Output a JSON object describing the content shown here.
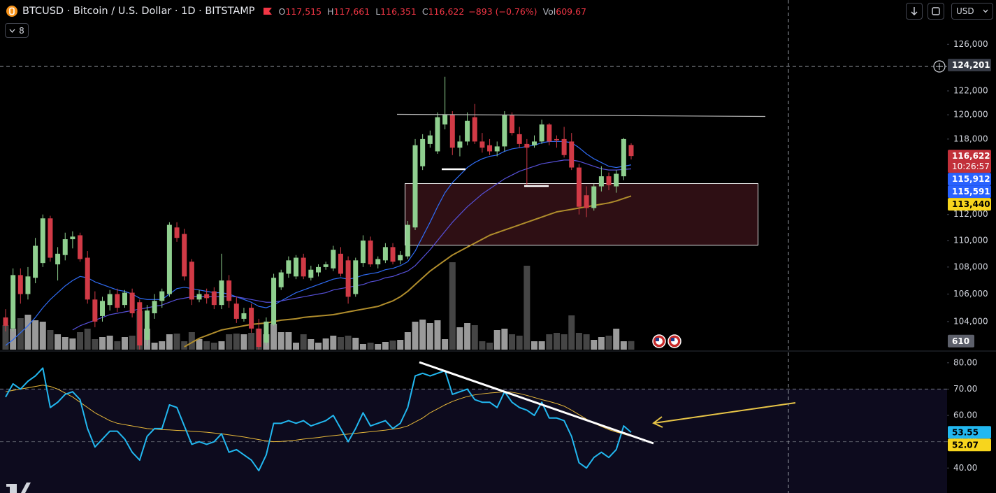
{
  "header": {
    "symbol": "BTCUSD · Bitcoin / U.S. Dollar · 1D · BITSTAMP",
    "ohlc": [
      {
        "label": "O",
        "value": "117,515"
      },
      {
        "label": "H",
        "value": "117,661"
      },
      {
        "label": "L",
        "value": "116,351"
      },
      {
        "label": "C",
        "value": "116,622"
      }
    ],
    "change": "−893 (−0.76%)",
    "vol_label": "Vol",
    "vol_value": "609.67",
    "indicator_count": "8",
    "currency": "USD"
  },
  "chart_data": [
    {
      "type": "candlestick",
      "log_scale": true,
      "grid": false,
      "ylim": [
        102000,
        129920
      ],
      "yticks": [
        {
          "value": 126000,
          "label": "126,000"
        },
        {
          "value": 122000,
          "label": "122,000"
        },
        {
          "value": 120000,
          "label": "120,000"
        },
        {
          "value": 118000,
          "label": "118,000"
        },
        {
          "value": 112000,
          "label": "112,000"
        },
        {
          "value": 110000,
          "label": "110,000"
        },
        {
          "value": 108000,
          "label": "108,000"
        },
        {
          "value": 106000,
          "label": "106,000"
        },
        {
          "value": 104000,
          "label": "104,000"
        }
      ],
      "up_color": "#8fcf8f",
      "down_color": "#d13a46",
      "open": [
        104300,
        103500,
        107400,
        106000,
        107200,
        108300,
        111700,
        108200,
        108900,
        110100,
        110400,
        108700,
        105600,
        104400,
        105200,
        106000,
        105200,
        106100,
        105400,
        102700,
        104600,
        105500,
        106000,
        111000,
        110500,
        108400,
        105600,
        106000,
        106200,
        105200,
        107000,
        105300,
        104200,
        105000,
        103500,
        102500,
        103800,
        106500,
        107500,
        107300,
        108700,
        107200,
        107600,
        108000,
        107900,
        109000,
        108500,
        106000,
        108300,
        110000,
        108200,
        108500,
        109500,
        108500,
        108800,
        111000,
        115800,
        117600,
        117000,
        119200,
        120000,
        117300,
        117800,
        119800,
        117800,
        117500,
        117000,
        117400,
        120000,
        118400,
        117600,
        117500,
        117800,
        119200,
        118000,
        118000,
        117800,
        115700,
        113500,
        112500,
        114200,
        115000,
        114200,
        115000,
        117515
      ],
      "high": [
        104900,
        107900,
        107900,
        108000,
        110200,
        112000,
        111900,
        109500,
        110600,
        110700,
        110600,
        109200,
        106200,
        105800,
        106300,
        106400,
        106300,
        106400,
        105600,
        105200,
        106000,
        106400,
        111400,
        111400,
        110900,
        108600,
        106300,
        106400,
        106500,
        109000,
        107400,
        105800,
        105000,
        105300,
        104200,
        104300,
        107500,
        107800,
        108800,
        108900,
        109000,
        108100,
        108200,
        108400,
        109600,
        109500,
        108800,
        108700,
        110400,
        110300,
        108800,
        109800,
        109800,
        109200,
        111500,
        118000,
        118400,
        118700,
        120200,
        123200,
        120300,
        118300,
        120200,
        120900,
        118500,
        118000,
        117800,
        120300,
        120200,
        119000,
        118000,
        118300,
        119600,
        119300,
        118300,
        119000,
        118500,
        116000,
        114200,
        114400,
        115800,
        115300,
        115500,
        118100,
        117661
      ],
      "low": [
        103300,
        103300,
        105300,
        105600,
        106800,
        108000,
        108400,
        107000,
        108500,
        109400,
        108400,
        105300,
        103600,
        104000,
        104800,
        104700,
        105000,
        104300,
        102000,
        102300,
        104200,
        105000,
        105800,
        109900,
        107000,
        105200,
        105400,
        105300,
        104900,
        104900,
        105000,
        103900,
        104000,
        103200,
        102000,
        102300,
        103700,
        106300,
        107200,
        107100,
        107100,
        107000,
        107300,
        107800,
        107700,
        107300,
        105300,
        105800,
        108000,
        108000,
        107900,
        108300,
        108200,
        108200,
        108600,
        110800,
        115500,
        117300,
        116800,
        118800,
        116700,
        116600,
        117500,
        117600,
        116900,
        116700,
        116600,
        117000,
        118300,
        117300,
        114300,
        117300,
        117600,
        117500,
        117300,
        116500,
        115500,
        112000,
        111800,
        112300,
        113800,
        113900,
        113700,
        114700,
        116351
      ],
      "close": [
        103700,
        107400,
        106000,
        107300,
        109600,
        111700,
        108700,
        109000,
        110100,
        110300,
        108600,
        105600,
        104000,
        105500,
        106000,
        105000,
        106100,
        104600,
        102300,
        104800,
        105500,
        106200,
        111200,
        110200,
        107300,
        105600,
        106000,
        105700,
        105200,
        107000,
        105500,
        104200,
        104600,
        103500,
        102200,
        104000,
        107200,
        107600,
        108500,
        108700,
        107300,
        107800,
        108000,
        108200,
        109300,
        107500,
        105800,
        108500,
        110000,
        108200,
        108600,
        109500,
        108400,
        108900,
        111200,
        117500,
        118000,
        118300,
        119800,
        120000,
        117300,
        117800,
        119500,
        117800,
        117300,
        117000,
        117400,
        120000,
        118500,
        117600,
        117300,
        117800,
        119200,
        117800,
        117900,
        116700,
        115700,
        112600,
        112500,
        114200,
        115000,
        114300,
        115200,
        118000,
        116622
      ],
      "series": [
        {
          "color": "#2f6cf5",
          "values": [
            102300,
            102700,
            103200,
            103700,
            104300,
            105000,
            105600,
            106100,
            106600,
            107000,
            107300,
            107200,
            106900,
            106700,
            106500,
            106300,
            106200,
            106000,
            105700,
            105600,
            105600,
            105600,
            106000,
            106400,
            106500,
            106400,
            106300,
            106200,
            106100,
            106100,
            106000,
            105800,
            105600,
            105400,
            105100,
            105000,
            105200,
            105500,
            105800,
            106100,
            106300,
            106500,
            106700,
            106900,
            107100,
            107200,
            107100,
            107200,
            107400,
            107500,
            107600,
            107800,
            107900,
            108100,
            108400,
            109200,
            110300,
            111400,
            112600,
            113700,
            114500,
            115100,
            115700,
            116100,
            116400,
            116600,
            116700,
            117000,
            117200,
            117300,
            117400,
            117500,
            117700,
            117800,
            117800,
            117800,
            117700,
            117300,
            116800,
            116400,
            116100,
            115800,
            115700,
            115800,
            115912
          ]
        },
        {
          "color": "#5650d8",
          "values": [
            null,
            null,
            null,
            null,
            null,
            null,
            null,
            null,
            null,
            103400,
            103700,
            103900,
            104100,
            104300,
            104500,
            104600,
            104700,
            104800,
            104900,
            105000,
            105100,
            105200,
            105400,
            105600,
            105700,
            105800,
            105800,
            105800,
            105800,
            105800,
            105800,
            105800,
            105700,
            105600,
            105500,
            105400,
            105400,
            105500,
            105600,
            105700,
            105800,
            105900,
            106000,
            106100,
            106300,
            106400,
            106500,
            106600,
            106700,
            106900,
            107000,
            107200,
            107300,
            107500,
            107700,
            108100,
            108700,
            109300,
            110000,
            110700,
            111400,
            112000,
            112600,
            113100,
            113600,
            114000,
            114400,
            114800,
            115100,
            115400,
            115600,
            115800,
            116000,
            116100,
            116200,
            116300,
            116300,
            116200,
            116000,
            115800,
            115600,
            115500,
            115500,
            115550,
            115591
          ]
        },
        {
          "color": "#b08d2c",
          "values": [
            null,
            null,
            null,
            null,
            null,
            null,
            null,
            null,
            null,
            null,
            null,
            null,
            null,
            null,
            null,
            null,
            null,
            null,
            null,
            null,
            null,
            null,
            null,
            null,
            102200,
            102500,
            102800,
            103000,
            103200,
            103400,
            103500,
            103600,
            103700,
            103800,
            103850,
            103900,
            104000,
            104100,
            104150,
            104200,
            104300,
            104350,
            104400,
            104450,
            104500,
            104600,
            104700,
            104800,
            104900,
            105000,
            105100,
            105300,
            105500,
            105800,
            106200,
            106700,
            107200,
            107700,
            108100,
            108500,
            108900,
            109200,
            109500,
            109800,
            110100,
            110400,
            110600,
            110800,
            111000,
            111200,
            111400,
            111600,
            111800,
            112000,
            112200,
            112300,
            112400,
            112500,
            112600,
            112700,
            112800,
            112900,
            113050,
            113250,
            113440
          ]
        }
      ],
      "volume_lim": [
        0,
        25000
      ],
      "volume_up_color": "#9a9a9a",
      "volume_down_color": "#454545",
      "volume": [
        1750,
        1500,
        2250,
        2500,
        2100,
        2000,
        1400,
        1100,
        900,
        800,
        1250,
        1500,
        750,
        900,
        1000,
        600,
        900,
        1000,
        2750,
        1500,
        500,
        600,
        1100,
        1150,
        600,
        1250,
        750,
        600,
        500,
        600,
        1100,
        1150,
        1100,
        1200,
        1500,
        1100,
        1850,
        1250,
        1250,
        500,
        1100,
        750,
        500,
        800,
        1000,
        900,
        1000,
        850,
        400,
        500,
        400,
        550,
        650,
        700,
        1250,
        2000,
        2150,
        1900,
        2100,
        750,
        6250,
        1600,
        1900,
        1750,
        600,
        500,
        1400,
        1500,
        1100,
        1000,
        6000,
        600,
        600,
        1100,
        1200,
        1100,
        2450,
        1200,
        1100,
        700,
        900,
        1000,
        1500,
        600,
        610
      ],
      "volume_label": {
        "value": 610,
        "label": "610",
        "color": "#5d606b",
        "text_color": "#ffffff"
      },
      "price_labels": [
        {
          "value": 124201,
          "label": "124,201",
          "color": "#363a45",
          "text_color": "#ffffff"
        },
        {
          "value": 116622,
          "label": "116,622",
          "sub": "10:26:57",
          "color": "#c2303a",
          "text_color": "#ffffff"
        },
        {
          "value": 115912,
          "label": "115,912",
          "color": "#2962ff",
          "text_color": "#ffffff"
        },
        {
          "value": 115591,
          "label": "115,591",
          "color": "#2962ff",
          "text_color": "#ffffff"
        },
        {
          "value": 113440,
          "label": "113,440",
          "color": "#f7d51d",
          "text_color": "#000000"
        }
      ]
    },
    {
      "type": "line",
      "ylim": [
        30.5,
        84.2
      ],
      "yticks": [
        {
          "value": 80,
          "label": "80.00"
        },
        {
          "value": 70,
          "label": "70.00"
        },
        {
          "value": 60,
          "label": "60.00"
        },
        {
          "value": 50,
          "label": "50.00"
        },
        {
          "value": 40,
          "label": "40.00"
        }
      ],
      "band": {
        "upper": 70,
        "middle": 50,
        "fill": "#0d0b1e"
      },
      "series": [
        {
          "color": "#22b8f0",
          "values": [
            67,
            72,
            70,
            73,
            75,
            78,
            63,
            65,
            68,
            69,
            66,
            55,
            48,
            51,
            54,
            54,
            51,
            46,
            43,
            52,
            55,
            55,
            64,
            63,
            56,
            49,
            50,
            49,
            50,
            53,
            46,
            47,
            45,
            43,
            39,
            45,
            57,
            57,
            58,
            57,
            58,
            56,
            57,
            58,
            60,
            55,
            50,
            55,
            61,
            56,
            57,
            58,
            55,
            57,
            63,
            75,
            76,
            75,
            76,
            77,
            68,
            69,
            70,
            66,
            65,
            65,
            63,
            69,
            65,
            63,
            62,
            60,
            65,
            59,
            59,
            58,
            52,
            42,
            40,
            44,
            46,
            44,
            47,
            56,
            53.55
          ]
        },
        {
          "color": "#e8b93a",
          "values": [
            69,
            69.5,
            70,
            70.5,
            71,
            71.5,
            71,
            70,
            68.5,
            67,
            65,
            63,
            61,
            59.5,
            58,
            57,
            56.5,
            56,
            55.5,
            55,
            54.8,
            54.6,
            54.5,
            54.3,
            54.2,
            54,
            53.8,
            53.6,
            53.3,
            53,
            52.6,
            52.2,
            51.8,
            51.3,
            50.8,
            50.3,
            50,
            50.1,
            50.3,
            50.6,
            51,
            51.3,
            51.6,
            52,
            52.3,
            52.6,
            52.9,
            53.2,
            53.5,
            53.8,
            54.1,
            54.4,
            54.8,
            55.2,
            56,
            57.5,
            59,
            61,
            62.5,
            64,
            65.3,
            66.3,
            67.2,
            67.8,
            68.2,
            68.5,
            68.7,
            69,
            68.8,
            68.3,
            67.6,
            66.8,
            66,
            65.3,
            64.5,
            63.5,
            62,
            60.3,
            58.6,
            57,
            55.8,
            54.6,
            53.7,
            52.9,
            52.07
          ]
        }
      ],
      "price_labels": [
        {
          "value": 53.55,
          "label": "53.55",
          "color": "#22b8f0",
          "text_color": "#000000"
        },
        {
          "value": 52.07,
          "label": "52.07",
          "color": "#f7d51d",
          "text_color": "#000000"
        }
      ]
    }
  ]
}
